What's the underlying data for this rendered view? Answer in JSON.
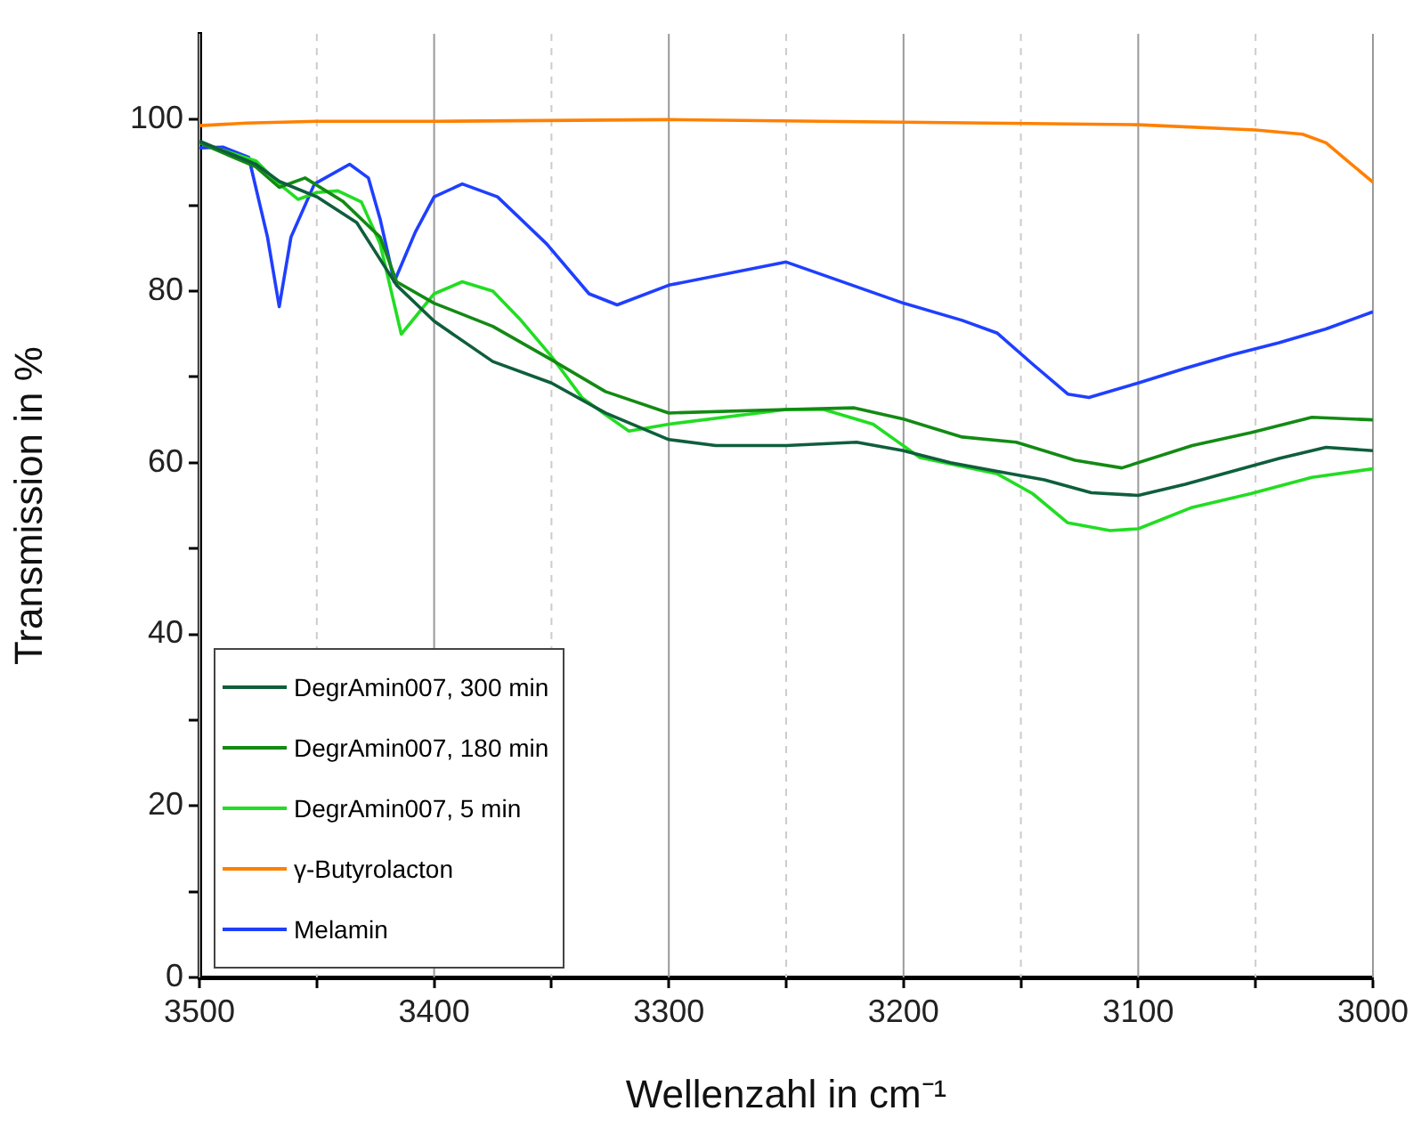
{
  "chart_data": {
    "type": "line",
    "xlabel": "Wellenzahl in cm⁻¹",
    "ylabel": "Transmission in %",
    "xlim": [
      3500,
      3000
    ],
    "ylim": [
      0,
      110
    ],
    "xticks": [
      3500,
      {
        "value": 3450,
        "label": null
      },
      3400,
      {
        "value": 3350,
        "label": null
      },
      3300,
      {
        "value": 3250,
        "label": null
      },
      3200,
      {
        "value": 3150,
        "label": null
      },
      3100,
      {
        "value": 3050,
        "label": null
      },
      3000
    ],
    "yticks": [
      0,
      {
        "value": 10,
        "label": null
      },
      20,
      {
        "value": 30,
        "label": null
      },
      40,
      {
        "value": 50,
        "label": null
      },
      60,
      {
        "value": 70,
        "label": null
      },
      80,
      {
        "value": 90,
        "label": null
      },
      100
    ],
    "grid": "x",
    "legend": "bottom left",
    "marker": "none",
    "line_style": "solid",
    "series": [
      {
        "name": "DegrAmin007, 300 min",
        "color": "#0f5e3c",
        "x": [
          3500,
          3476,
          3466,
          3450,
          3433,
          3416,
          3400,
          3375,
          3350,
          3327,
          3300,
          3280,
          3250,
          3220,
          3200,
          3180,
          3160,
          3140,
          3120,
          3100,
          3080,
          3060,
          3040,
          3020,
          3000
        ],
        "values": [
          97.5,
          94.8,
          92.8,
          91,
          88,
          80.7,
          76.5,
          71.8,
          69.3,
          65.8,
          62.7,
          62,
          62,
          62.4,
          61.4,
          60,
          59,
          58,
          56.5,
          56.2,
          57.5,
          59,
          60.5,
          61.8,
          61.4
        ]
      },
      {
        "name": "DegrAmin007, 180 min",
        "color": "#138a13",
        "x": [
          3500,
          3476,
          3466,
          3455,
          3439,
          3423,
          3416,
          3400,
          3375,
          3350,
          3327,
          3300,
          3250,
          3221,
          3200,
          3175,
          3152,
          3127,
          3107,
          3077,
          3052,
          3026,
          3000
        ],
        "values": [
          97.3,
          94.5,
          92.1,
          93.2,
          90.5,
          86.3,
          81.1,
          78.6,
          75.9,
          72,
          68.3,
          65.8,
          66.2,
          66.4,
          65.1,
          63,
          62.4,
          60.3,
          59.4,
          62,
          63.5,
          65.3,
          65
        ]
      },
      {
        "name": "DegrAmin007, 5 min",
        "color": "#22dd22",
        "x": [
          3500,
          3476,
          3466,
          3458,
          3450,
          3441,
          3431,
          3423,
          3420,
          3414,
          3408,
          3400,
          3388,
          3375,
          3363,
          3350,
          3337,
          3327,
          3317,
          3300,
          3250,
          3234,
          3213,
          3193,
          3160,
          3145,
          3130,
          3112,
          3100,
          3077,
          3052,
          3026,
          3000
        ],
        "values": [
          97.3,
          95.2,
          92.5,
          90.7,
          91.5,
          91.7,
          90.4,
          85.5,
          82,
          75,
          77,
          79.7,
          81.1,
          80,
          76.6,
          72.4,
          67.6,
          65.6,
          63.7,
          64.5,
          66.2,
          66.2,
          64.5,
          60.6,
          58.7,
          56.4,
          53,
          52.1,
          52.3,
          54.8,
          56.4,
          58.3,
          59.3
        ]
      },
      {
        "name": "γ-Butyrolacton",
        "color": "#ff8000",
        "x": [
          3500,
          3480,
          3450,
          3400,
          3300,
          3200,
          3100,
          3050,
          3030,
          3020,
          3010,
          3000
        ],
        "values": [
          99.3,
          99.6,
          99.8,
          99.8,
          100,
          99.7,
          99.4,
          98.8,
          98.3,
          97.3,
          95,
          92.7
        ]
      },
      {
        "name": "Melamin",
        "color": "#1f3fff",
        "x": [
          3500,
          3490,
          3479,
          3471,
          3466,
          3461,
          3451,
          3436,
          3428,
          3423,
          3417,
          3408,
          3400,
          3388,
          3373,
          3352,
          3334,
          3322,
          3300,
          3250,
          3200,
          3175,
          3160,
          3145,
          3130,
          3121,
          3100,
          3080,
          3060,
          3040,
          3020,
          3000
        ],
        "values": [
          96.7,
          96.8,
          95.6,
          86.3,
          78.2,
          86.3,
          92.5,
          94.8,
          93.2,
          88.4,
          81.1,
          86.9,
          91,
          92.5,
          91,
          85.5,
          79.7,
          78.4,
          80.7,
          83.4,
          78.6,
          76.6,
          75.1,
          71.5,
          68,
          67.6,
          69.3,
          71,
          72.6,
          74,
          75.6,
          77.6
        ]
      }
    ]
  }
}
